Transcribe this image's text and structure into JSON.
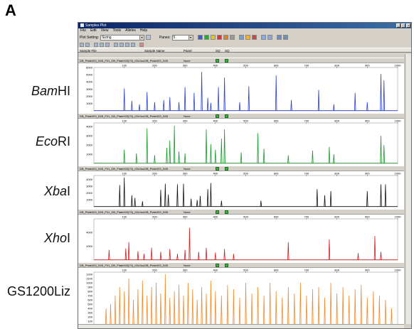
{
  "figure_letter": "A",
  "window": {
    "title": "Samples Plot",
    "menu": [
      "File",
      "Edit",
      "View",
      "Tools",
      "Alleles",
      "Help"
    ],
    "plot_setting_label": "Plot Setting:",
    "plot_setting_value": "Sizing",
    "panes_label": "Panes:",
    "panes_value": "5",
    "column_headers": {
      "sample_file": "Sample File",
      "sample_name": "Sample Name",
      "panel": "Panel",
      "sq": "SQ",
      "sq_status": "SQ"
    },
    "color_buttons": [
      "#3b5bd6",
      "#2aa834",
      "#e8c21c",
      "#d23a3a",
      "#e87d1a",
      "#7a7a7a"
    ]
  },
  "lanes": [
    {
      "label_ital": "Bam",
      "label_rest": "HI",
      "sample_file": "DB_Plate003_D05_F01_DB_Plate003(70)_004.fsa",
      "sample_name": "DB_Plate003_D05",
      "panel": "None",
      "color": "#2b3fd1",
      "y_ticks": [
        "6000",
        "5000",
        "4000",
        "3000",
        "2000",
        "1000"
      ],
      "ymax": 6000,
      "peaks": [
        [
          100,
          3100
        ],
        [
          125,
          1400
        ],
        [
          150,
          900
        ],
        [
          175,
          2600
        ],
        [
          200,
          1200
        ],
        [
          230,
          1500
        ],
        [
          250,
          1900
        ],
        [
          280,
          1200
        ],
        [
          300,
          3300
        ],
        [
          330,
          2500
        ],
        [
          355,
          5400
        ],
        [
          375,
          1800
        ],
        [
          385,
          1100
        ],
        [
          410,
          3300
        ],
        [
          430,
          4600
        ],
        [
          480,
          1200
        ],
        [
          510,
          3400
        ],
        [
          600,
          4900
        ],
        [
          650,
          1500
        ],
        [
          740,
          2900
        ],
        [
          790,
          900
        ],
        [
          860,
          2500
        ],
        [
          900,
          1200
        ],
        [
          945,
          5100
        ],
        [
          955,
          4200
        ]
      ]
    },
    {
      "label_ital": "Eco",
      "label_rest": "RI",
      "sample_file": "DB_Plate003_D05_F01_DB_Plate003(70)_004.fsa",
      "sample_name": "DB_Plate003_D05",
      "panel": "None",
      "color": "#1a9a2a",
      "y_ticks": [
        "4000",
        "3000",
        "2000",
        "1000"
      ],
      "ymax": 4400,
      "peaks": [
        [
          100,
          1500
        ],
        [
          140,
          1100
        ],
        [
          175,
          3800
        ],
        [
          200,
          900
        ],
        [
          240,
          1700
        ],
        [
          250,
          2500
        ],
        [
          265,
          4100
        ],
        [
          280,
          1300
        ],
        [
          300,
          1100
        ],
        [
          370,
          3700
        ],
        [
          385,
          2100
        ],
        [
          400,
          1500
        ],
        [
          420,
          2700
        ],
        [
          430,
          3700
        ],
        [
          485,
          1200
        ],
        [
          540,
          3300
        ],
        [
          560,
          1600
        ],
        [
          640,
          900
        ],
        [
          720,
          1400
        ],
        [
          775,
          1800
        ],
        [
          790,
          1000
        ],
        [
          945,
          3000
        ],
        [
          955,
          2000
        ]
      ]
    },
    {
      "label_ital": "Xba",
      "label_rest": "I",
      "sample_file": "DB_Plate003_D05_F01_DB_Plate003(70)_004.fsa",
      "sample_name": "DB_Plate003_D05",
      "panel": "None",
      "color": "#111111",
      "y_ticks": [
        "4000",
        "3000",
        "2000",
        "1000"
      ],
      "ymax": 4600,
      "peaks": [
        [
          85,
          3200
        ],
        [
          100,
          4300
        ],
        [
          125,
          1700
        ],
        [
          135,
          1300
        ],
        [
          160,
          800
        ],
        [
          220,
          2500
        ],
        [
          235,
          3400
        ],
        [
          245,
          1800
        ],
        [
          275,
          3300
        ],
        [
          295,
          3400
        ],
        [
          320,
          1200
        ],
        [
          340,
          1000
        ],
        [
          350,
          1600
        ],
        [
          375,
          2600
        ],
        [
          385,
          3500
        ],
        [
          420,
          900
        ],
        [
          550,
          900
        ],
        [
          735,
          2600
        ],
        [
          760,
          1700
        ],
        [
          780,
          2300
        ],
        [
          900,
          2300
        ],
        [
          945,
          3300
        ],
        [
          960,
          3300
        ]
      ]
    },
    {
      "label_ital": "Xho",
      "label_rest": "I",
      "sample_file": "DB_Plate003_D05_F01_DB_Plate003(70)_004.fsa",
      "sample_name": "DB_Plate003_D05",
      "panel": "None",
      "color": "#d21e1e",
      "y_ticks": [
        "4000",
        "2000"
      ],
      "ymax": 6000,
      "peaks": [
        [
          50,
          1500
        ],
        [
          105,
          1700
        ],
        [
          115,
          2600
        ],
        [
          145,
          1300
        ],
        [
          165,
          900
        ],
        [
          190,
          1800
        ],
        [
          220,
          1200
        ],
        [
          250,
          1600
        ],
        [
          275,
          900
        ],
        [
          300,
          1500
        ],
        [
          315,
          4700
        ],
        [
          345,
          1200
        ],
        [
          370,
          1800
        ],
        [
          400,
          1100
        ],
        [
          430,
          1600
        ],
        [
          460,
          900
        ],
        [
          640,
          2600
        ],
        [
          775,
          3000
        ],
        [
          870,
          1000
        ],
        [
          925,
          3500
        ],
        [
          945,
          1200
        ]
      ]
    },
    {
      "label_ital": "",
      "label_rest": "GS1200Liz",
      "sample_file": "DB_Plate003_D05_F01_DB_Plate003(70)_004.fsa",
      "sample_name": "DB_Plate003_D05",
      "panel": "None",
      "color": "#f08a2c",
      "y_ticks": [
        "1200",
        "1100",
        "1000",
        "900",
        "800",
        "700",
        "600",
        "500",
        "400",
        "300",
        "200",
        "100"
      ],
      "ymax": 1250,
      "peaks": [
        [
          40,
          400
        ],
        [
          55,
          500
        ],
        [
          70,
          700
        ],
        [
          85,
          900
        ],
        [
          100,
          800
        ],
        [
          115,
          1100
        ],
        [
          130,
          600
        ],
        [
          145,
          850
        ],
        [
          160,
          1050
        ],
        [
          175,
          700
        ],
        [
          190,
          900
        ],
        [
          205,
          1000
        ],
        [
          220,
          750
        ],
        [
          235,
          1200
        ],
        [
          250,
          650
        ],
        [
          265,
          800
        ],
        [
          280,
          950
        ],
        [
          295,
          700
        ],
        [
          310,
          1000
        ],
        [
          325,
          850
        ],
        [
          340,
          600
        ],
        [
          355,
          900
        ],
        [
          370,
          750
        ],
        [
          385,
          1050
        ],
        [
          400,
          800
        ],
        [
          420,
          700
        ],
        [
          440,
          950
        ],
        [
          460,
          850
        ],
        [
          480,
          650
        ],
        [
          500,
          1000
        ],
        [
          520,
          750
        ],
        [
          540,
          900
        ],
        [
          560,
          700
        ],
        [
          580,
          1000
        ],
        [
          600,
          800
        ],
        [
          620,
          650
        ],
        [
          640,
          900
        ],
        [
          660,
          750
        ],
        [
          680,
          1000
        ],
        [
          700,
          700
        ],
        [
          720,
          850
        ],
        [
          740,
          900
        ],
        [
          760,
          650
        ],
        [
          780,
          1000
        ],
        [
          800,
          750
        ],
        [
          820,
          900
        ],
        [
          840,
          700
        ],
        [
          860,
          850
        ],
        [
          880,
          950
        ],
        [
          900,
          650
        ],
        [
          920,
          800
        ],
        [
          940,
          700
        ],
        [
          960,
          600
        ],
        [
          980,
          400
        ]
      ]
    }
  ],
  "x_ticks": [
    "100",
    "200",
    "300",
    "400",
    "500",
    "600",
    "700",
    "800",
    "900",
    "1000"
  ],
  "x_min": 0,
  "x_max": 1000
}
